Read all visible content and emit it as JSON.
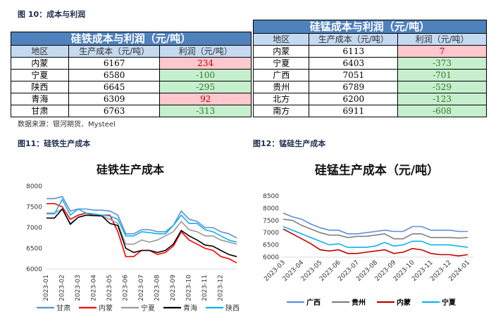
{
  "fig10_title": "图 10：成本与利润",
  "sife_table": {
    "title": "硅铁成本与利润（元/吨）",
    "headers": [
      "地区",
      "生产成本（元/吨）",
      "利润（元/吨）"
    ],
    "rows": [
      [
        "内蒙",
        "6167",
        "234"
      ],
      [
        "宁夏",
        "6580",
        "-100"
      ],
      [
        "陕西",
        "6645",
        "-295"
      ],
      [
        "青海",
        "6309",
        "92"
      ],
      [
        "甘肃",
        "6763",
        "-313"
      ]
    ]
  },
  "simn_table": {
    "title": "硅锰成本与利润（元/吨）",
    "headers": [
      "地区",
      "生产成本（元/吨）",
      "利润（元/吨）"
    ],
    "rows": [
      [
        "内蒙",
        "6113",
        "7"
      ],
      [
        "宁夏",
        "6403",
        "-373"
      ],
      [
        "广西",
        "7051",
        "-701"
      ],
      [
        "贵州",
        "6789",
        "-529"
      ],
      [
        "北方",
        "6200",
        "-123"
      ],
      [
        "南方",
        "6911",
        "-608"
      ]
    ]
  },
  "source": "数据来源：银河期货、Mysteel",
  "fig11_title": "图11：硅铁生产成本",
  "fig12_title": "图12：锰硅生产成本",
  "colors": {
    "profit_positive": "#ffc7ce",
    "profit_negative": "#c6efce",
    "table_header": "#4f81bd"
  },
  "chart_data": [
    {
      "type": "line",
      "title": "硅铁生产成本",
      "ylim": [
        6000,
        8000
      ],
      "yticks": [
        6000,
        6500,
        7000,
        7500,
        8000
      ],
      "xticks": [
        "2023-01",
        "2023-02",
        "2023-03",
        "2023-04",
        "2023-05",
        "2023-06",
        "2023-07",
        "2023-08",
        "2023-09",
        "2023-10",
        "2023-11",
        "2023-12"
      ],
      "x_start": "2023-01",
      "x_step": "half-month",
      "legend": "bottom",
      "series": [
        {
          "name": "甘肃",
          "color": "#5b8fd6",
          "values": [
            7700,
            7700,
            7750,
            7400,
            7450,
            7450,
            7420,
            7420,
            7400,
            7300,
            6850,
            6850,
            6950,
            6950,
            6900,
            6900,
            7050,
            7400,
            7200,
            7150,
            7000,
            7000,
            6900,
            6850,
            6750
          ]
        },
        {
          "name": "内蒙",
          "color": "#ff0000",
          "values": [
            7580,
            7580,
            7500,
            7200,
            7300,
            7350,
            7300,
            7300,
            7300,
            6900,
            6300,
            6300,
            6450,
            6450,
            6350,
            6400,
            6550,
            6900,
            6700,
            6600,
            6500,
            6450,
            6300,
            6250,
            6150
          ]
        },
        {
          "name": "宁夏",
          "color": "#999999",
          "values": [
            7350,
            7350,
            7450,
            7100,
            7250,
            7300,
            7300,
            7280,
            7200,
            7100,
            6600,
            6600,
            6700,
            6650,
            6700,
            6800,
            6900,
            7150,
            6950,
            6900,
            6800,
            6800,
            6700,
            6650,
            6600
          ]
        },
        {
          "name": "青海",
          "color": "#000000",
          "values": [
            7230,
            7230,
            7450,
            7080,
            7250,
            7300,
            7290,
            7280,
            7100,
            7050,
            6500,
            6400,
            6450,
            6450,
            6400,
            6450,
            6600,
            6930,
            6800,
            6700,
            6580,
            6550,
            6450,
            6350,
            6300
          ]
        },
        {
          "name": "陕西",
          "color": "#12b0ea",
          "values": [
            7330,
            7330,
            7680,
            7300,
            7450,
            7350,
            7330,
            7300,
            7280,
            7200,
            6800,
            6800,
            6900,
            6880,
            6850,
            6850,
            7050,
            7300,
            7100,
            7100,
            6950,
            6900,
            6800,
            6700,
            6650
          ]
        }
      ]
    },
    {
      "type": "line",
      "title": "硅锰生产成本（元/吨）",
      "ylim": [
        6000,
        8500
      ],
      "yticks": [
        6000,
        6500,
        7000,
        7500,
        8000,
        8500
      ],
      "xticks": [
        "2023-03",
        "2023-04",
        "2023-05",
        "2023-06",
        "2023-07",
        "2023-08",
        "2023-09",
        "2023-10",
        "2023-11",
        "2023-12",
        "2024-01"
      ],
      "x_start": "2023-03",
      "x_step": "half-month",
      "legend": "bottom",
      "series": [
        {
          "name": "广西",
          "color": "#5b8fd6",
          "values": [
            7800,
            7650,
            7550,
            7350,
            7200,
            7100,
            7100,
            6950,
            6950,
            7000,
            7050,
            7100,
            7050,
            7050,
            7250,
            7250,
            7100,
            7100,
            7100,
            7050,
            7050
          ]
        },
        {
          "name": "贵州",
          "color": "#808080",
          "values": [
            7550,
            7500,
            7300,
            7150,
            7000,
            6900,
            6900,
            6800,
            6850,
            6850,
            6900,
            6950,
            6750,
            6750,
            6950,
            6950,
            6800,
            6800,
            6800,
            6780,
            6800
          ]
        },
        {
          "name": "内蒙",
          "color": "#c00000",
          "values": [
            7150,
            6950,
            6750,
            6550,
            6300,
            6250,
            6300,
            6150,
            6150,
            6200,
            6250,
            6300,
            6150,
            6200,
            6350,
            6300,
            6150,
            6100,
            6100,
            6050,
            6100
          ]
        },
        {
          "name": "宁夏",
          "color": "#12b0ea",
          "values": [
            7250,
            7100,
            6950,
            6800,
            6650,
            6500,
            6550,
            6400,
            6400,
            6400,
            6450,
            6600,
            6450,
            6500,
            6650,
            6650,
            6500,
            6500,
            6500,
            6450,
            6400
          ]
        }
      ]
    }
  ]
}
